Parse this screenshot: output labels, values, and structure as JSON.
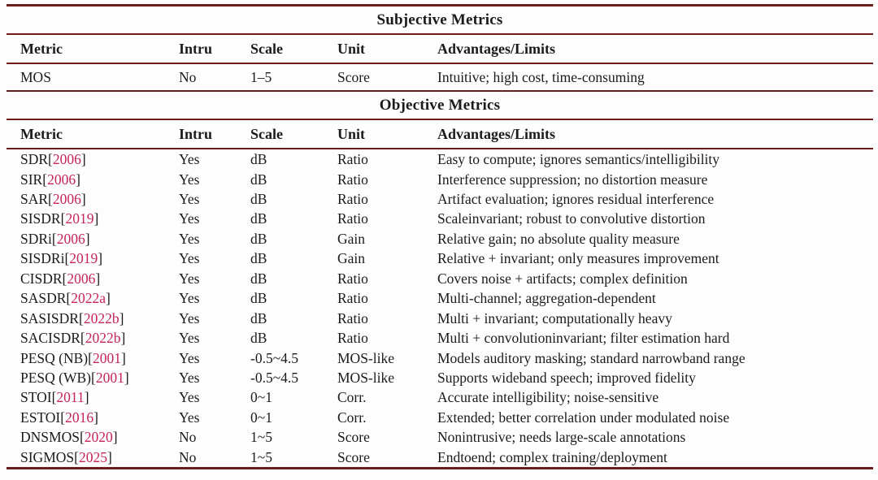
{
  "colors": {
    "rule": "#6e1d1d",
    "text": "#1b1b1b",
    "citation": "#c72458",
    "background": "#fdfdfd"
  },
  "columns": [
    "Metric",
    "Intru",
    "Scale",
    "Unit",
    "Advantages/Limits"
  ],
  "sections": [
    {
      "title": "Subjective Metrics",
      "rows": [
        {
          "metric": "MOS",
          "cite": "",
          "intru": "No",
          "scale": "1–5",
          "unit": "Score",
          "notes": "Intuitive; high cost, time-consuming"
        }
      ]
    },
    {
      "title": "Objective Metrics",
      "rows": [
        {
          "metric": "SDR",
          "cite": "2006",
          "intru": "Yes",
          "scale": "dB",
          "unit": "Ratio",
          "notes": "Easy to compute; ignores semantics/intelligibility"
        },
        {
          "metric": "SIR",
          "cite": "2006",
          "intru": "Yes",
          "scale": "dB",
          "unit": "Ratio",
          "notes": "Interference suppression; no distortion measure"
        },
        {
          "metric": "SAR",
          "cite": "2006",
          "intru": "Yes",
          "scale": "dB",
          "unit": "Ratio",
          "notes": "Artifact evaluation; ignores residual interference"
        },
        {
          "metric": "SISDR",
          "cite": "2019",
          "intru": "Yes",
          "scale": "dB",
          "unit": "Ratio",
          "notes": "Scaleinvariant; robust to convolutive distortion"
        },
        {
          "metric": "SDRi",
          "cite": "2006",
          "intru": "Yes",
          "scale": "dB",
          "unit": "Gain",
          "notes": "Relative gain; no absolute quality measure"
        },
        {
          "metric": "SISDRi",
          "cite": "2019",
          "intru": "Yes",
          "scale": "dB",
          "unit": "Gain",
          "notes": "Relative + invariant; only measures improvement"
        },
        {
          "metric": "CISDR",
          "cite": "2006",
          "intru": "Yes",
          "scale": "dB",
          "unit": "Ratio",
          "notes": "Covers noise + artifacts; complex definition"
        },
        {
          "metric": "SASDR",
          "cite": "2022a",
          "intru": "Yes",
          "scale": "dB",
          "unit": "Ratio",
          "notes": "Multi-channel; aggregation-dependent"
        },
        {
          "metric": "SASISDR",
          "cite": "2022b",
          "intru": "Yes",
          "scale": "dB",
          "unit": "Ratio",
          "notes": "Multi + invariant; computationally heavy"
        },
        {
          "metric": "SACISDR",
          "cite": "2022b",
          "intru": "Yes",
          "scale": "dB",
          "unit": "Ratio",
          "notes": "Multi + convolutioninvariant; filter estimation hard"
        },
        {
          "metric": "PESQ (NB)",
          "cite": "2001",
          "intru": "Yes",
          "scale": "-0.5~4.5",
          "unit": "MOS-like",
          "notes": "Models auditory masking; standard narrowband range"
        },
        {
          "metric": "PESQ (WB)",
          "cite": "2001",
          "intru": "Yes",
          "scale": "-0.5~4.5",
          "unit": "MOS-like",
          "notes": "Supports wideband speech; improved fidelity"
        },
        {
          "metric": "STOI",
          "cite": "2011",
          "intru": "Yes",
          "scale": "0~1",
          "unit": "Corr.",
          "notes": "Accurate intelligibility; noise-sensitive"
        },
        {
          "metric": "ESTOI",
          "cite": "2016",
          "intru": "Yes",
          "scale": "0~1",
          "unit": "Corr.",
          "notes": "Extended; better correlation under modulated noise"
        },
        {
          "metric": "DNSMOS",
          "cite": "2020",
          "intru": "No",
          "scale": "1~5",
          "unit": "Score",
          "notes": "Nonintrusive; needs large-scale annotations"
        },
        {
          "metric": "SIGMOS",
          "cite": "2025",
          "intru": "No",
          "scale": "1~5",
          "unit": "Score",
          "notes": "Endtoend; complex training/deployment"
        }
      ]
    }
  ]
}
